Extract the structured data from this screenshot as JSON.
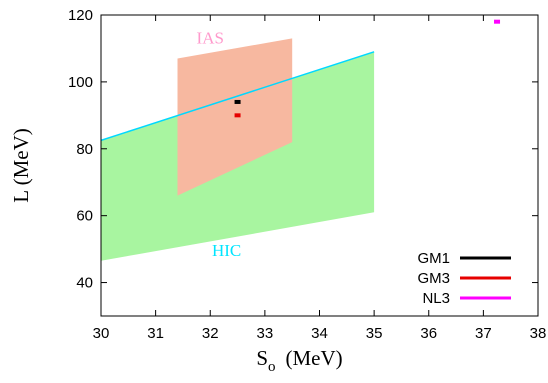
{
  "chart_data": {
    "type": "area",
    "xlabel_main": "S",
    "xlabel_sub": "o",
    "xlabel_unit": "(MeV)",
    "ylabel": "L  (MeV)",
    "xlim": [
      30,
      38
    ],
    "ylim": [
      30,
      120
    ],
    "x_ticks": [
      30,
      31,
      32,
      33,
      34,
      35,
      36,
      37,
      38
    ],
    "y_ticks": [
      40,
      60,
      80,
      100,
      120
    ],
    "grid": false,
    "legend_position": "bottom-right",
    "regions": [
      {
        "label": "HIC",
        "color": "#a8f5a0",
        "label_color": "#00e5ff",
        "label_at": [
          32.3,
          48
        ],
        "polygon": [
          [
            30,
            46.5
          ],
          [
            35,
            61
          ],
          [
            35,
            109
          ],
          [
            30,
            82.5
          ]
        ]
      },
      {
        "label": "IAS",
        "color": "#f7b8a0",
        "label_color": "#ff99cc",
        "label_at": [
          32.0,
          111.5
        ],
        "polygon": [
          [
            31.4,
            66
          ],
          [
            33.5,
            82
          ],
          [
            33.5,
            113
          ],
          [
            31.4,
            107
          ]
        ]
      }
    ],
    "boundary_line": {
      "color": "#00d8ff",
      "points": [
        [
          30,
          82.5
        ],
        [
          35,
          109
        ]
      ]
    },
    "series": [
      {
        "name": "GM1",
        "color": "#000000",
        "x": 32.5,
        "y": 94
      },
      {
        "name": "GM3",
        "color": "#e60000",
        "x": 32.5,
        "y": 90
      },
      {
        "name": "NL3",
        "color": "#ff00ff",
        "x": 37.25,
        "y": 118
      }
    ]
  }
}
